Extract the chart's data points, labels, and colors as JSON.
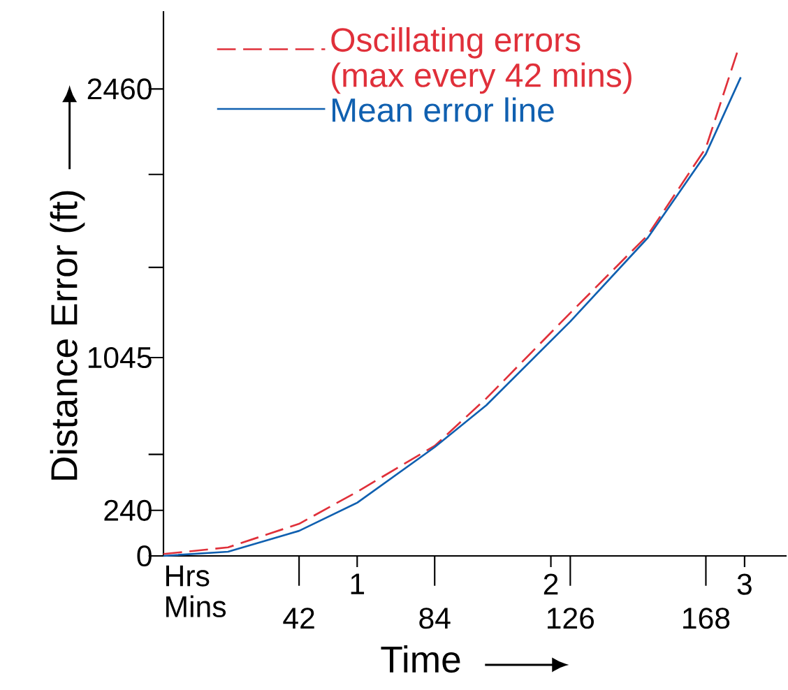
{
  "chart_data": {
    "type": "line",
    "xlabel": "Time",
    "ylabel": "Distance Error (ft)",
    "xlim": [
      0,
      193
    ],
    "ylim": [
      0,
      2870
    ],
    "xticks": [
      42,
      84,
      126,
      168
    ],
    "x2lim": [
      0,
      3.217
    ],
    "x2ticks": [
      1,
      2,
      3
    ],
    "yticks": [
      0,
      240,
      {
        "value": 535,
        "label": null
      },
      1045,
      {
        "value": 1520,
        "label": null
      },
      {
        "value": 2010,
        "label": null
      },
      2460
    ],
    "series": [
      {
        "name": "Oscillating errors (max every 42 mins)",
        "color": "#e0303a",
        "line_style": "dashed",
        "x": [
          0,
          20,
          42,
          60,
          84,
          100,
          126,
          150,
          168,
          178
        ],
        "values": [
          10,
          45,
          169,
          338,
          580,
          830,
          1280,
          1690,
          2150,
          2669
        ]
      },
      {
        "name": "Mean error line",
        "color": "#1060b0",
        "line_style": "solid",
        "x": [
          0,
          20,
          42,
          60,
          84,
          100,
          126,
          150,
          168,
          178.8
        ],
        "values": [
          0,
          22,
          132,
          280,
          573,
          794,
          1235,
          1676,
          2118,
          2522
        ]
      }
    ],
    "legend": "top left",
    "grid": false,
    "marker": "none",
    "annotations": [
      "Hrs",
      "Mins"
    ]
  }
}
